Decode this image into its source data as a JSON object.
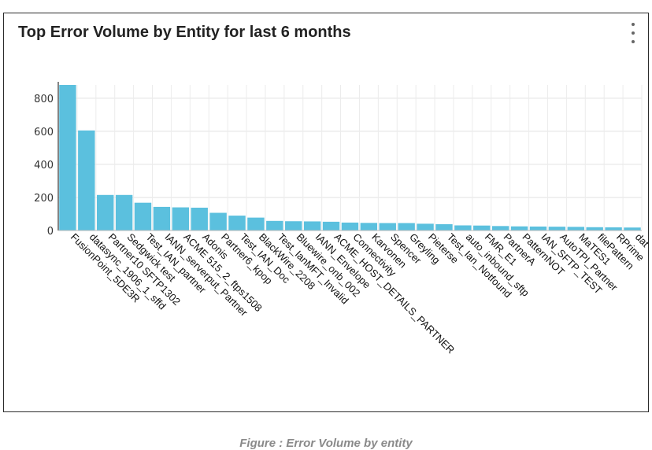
{
  "card": {
    "title": "Top Error Volume by Entity for last 6 months",
    "menu_icon": "kebab-menu-icon"
  },
  "caption": "Figure : Error Volume by entity",
  "chart_data": {
    "type": "bar",
    "title": "Top Error Volume by Entity for last 6 months",
    "xlabel": "",
    "ylabel": "",
    "ylim": [
      0,
      880
    ],
    "yticks": [
      0,
      200,
      400,
      600,
      800
    ],
    "grid": true,
    "bar_color": "#5bc0de",
    "categories": [
      "FusionPoint_5DE3R",
      "datasync_1906_1_sffd",
      "Partner10 SFTP1302",
      "Sedgwick test",
      "Test_IAN_partner",
      "IANN_serverput_Partner",
      "ACME 515_2_ftps1508",
      "Adonis",
      "Partner6_kpop",
      "Test_IAN_Doc",
      "BlackWire_2208",
      "Test_IanMFT_Invalid",
      "Bluewire_onb_002",
      "IANN_Envelope",
      "ACME_HOST_DETAILS_PARTNER",
      "Connectivity",
      "Karvonen",
      "Spencer",
      "Greyling",
      "Pieterse",
      "Test_Ian_Notfound",
      "auto_inbound_sftp",
      "FMR_E1",
      "PartnerA",
      "PatternNOT",
      "IAN_SFTP_TEST",
      "AutoTPI_Partner",
      "MaTES1",
      "filePattern",
      "RPrime",
      "dat"
    ],
    "values": [
      880,
      605,
      215,
      215,
      168,
      143,
      140,
      138,
      107,
      90,
      78,
      58,
      56,
      55,
      53,
      48,
      46,
      45,
      45,
      41,
      38,
      31,
      30,
      27,
      25,
      24,
      23,
      22,
      20,
      19,
      18
    ]
  }
}
